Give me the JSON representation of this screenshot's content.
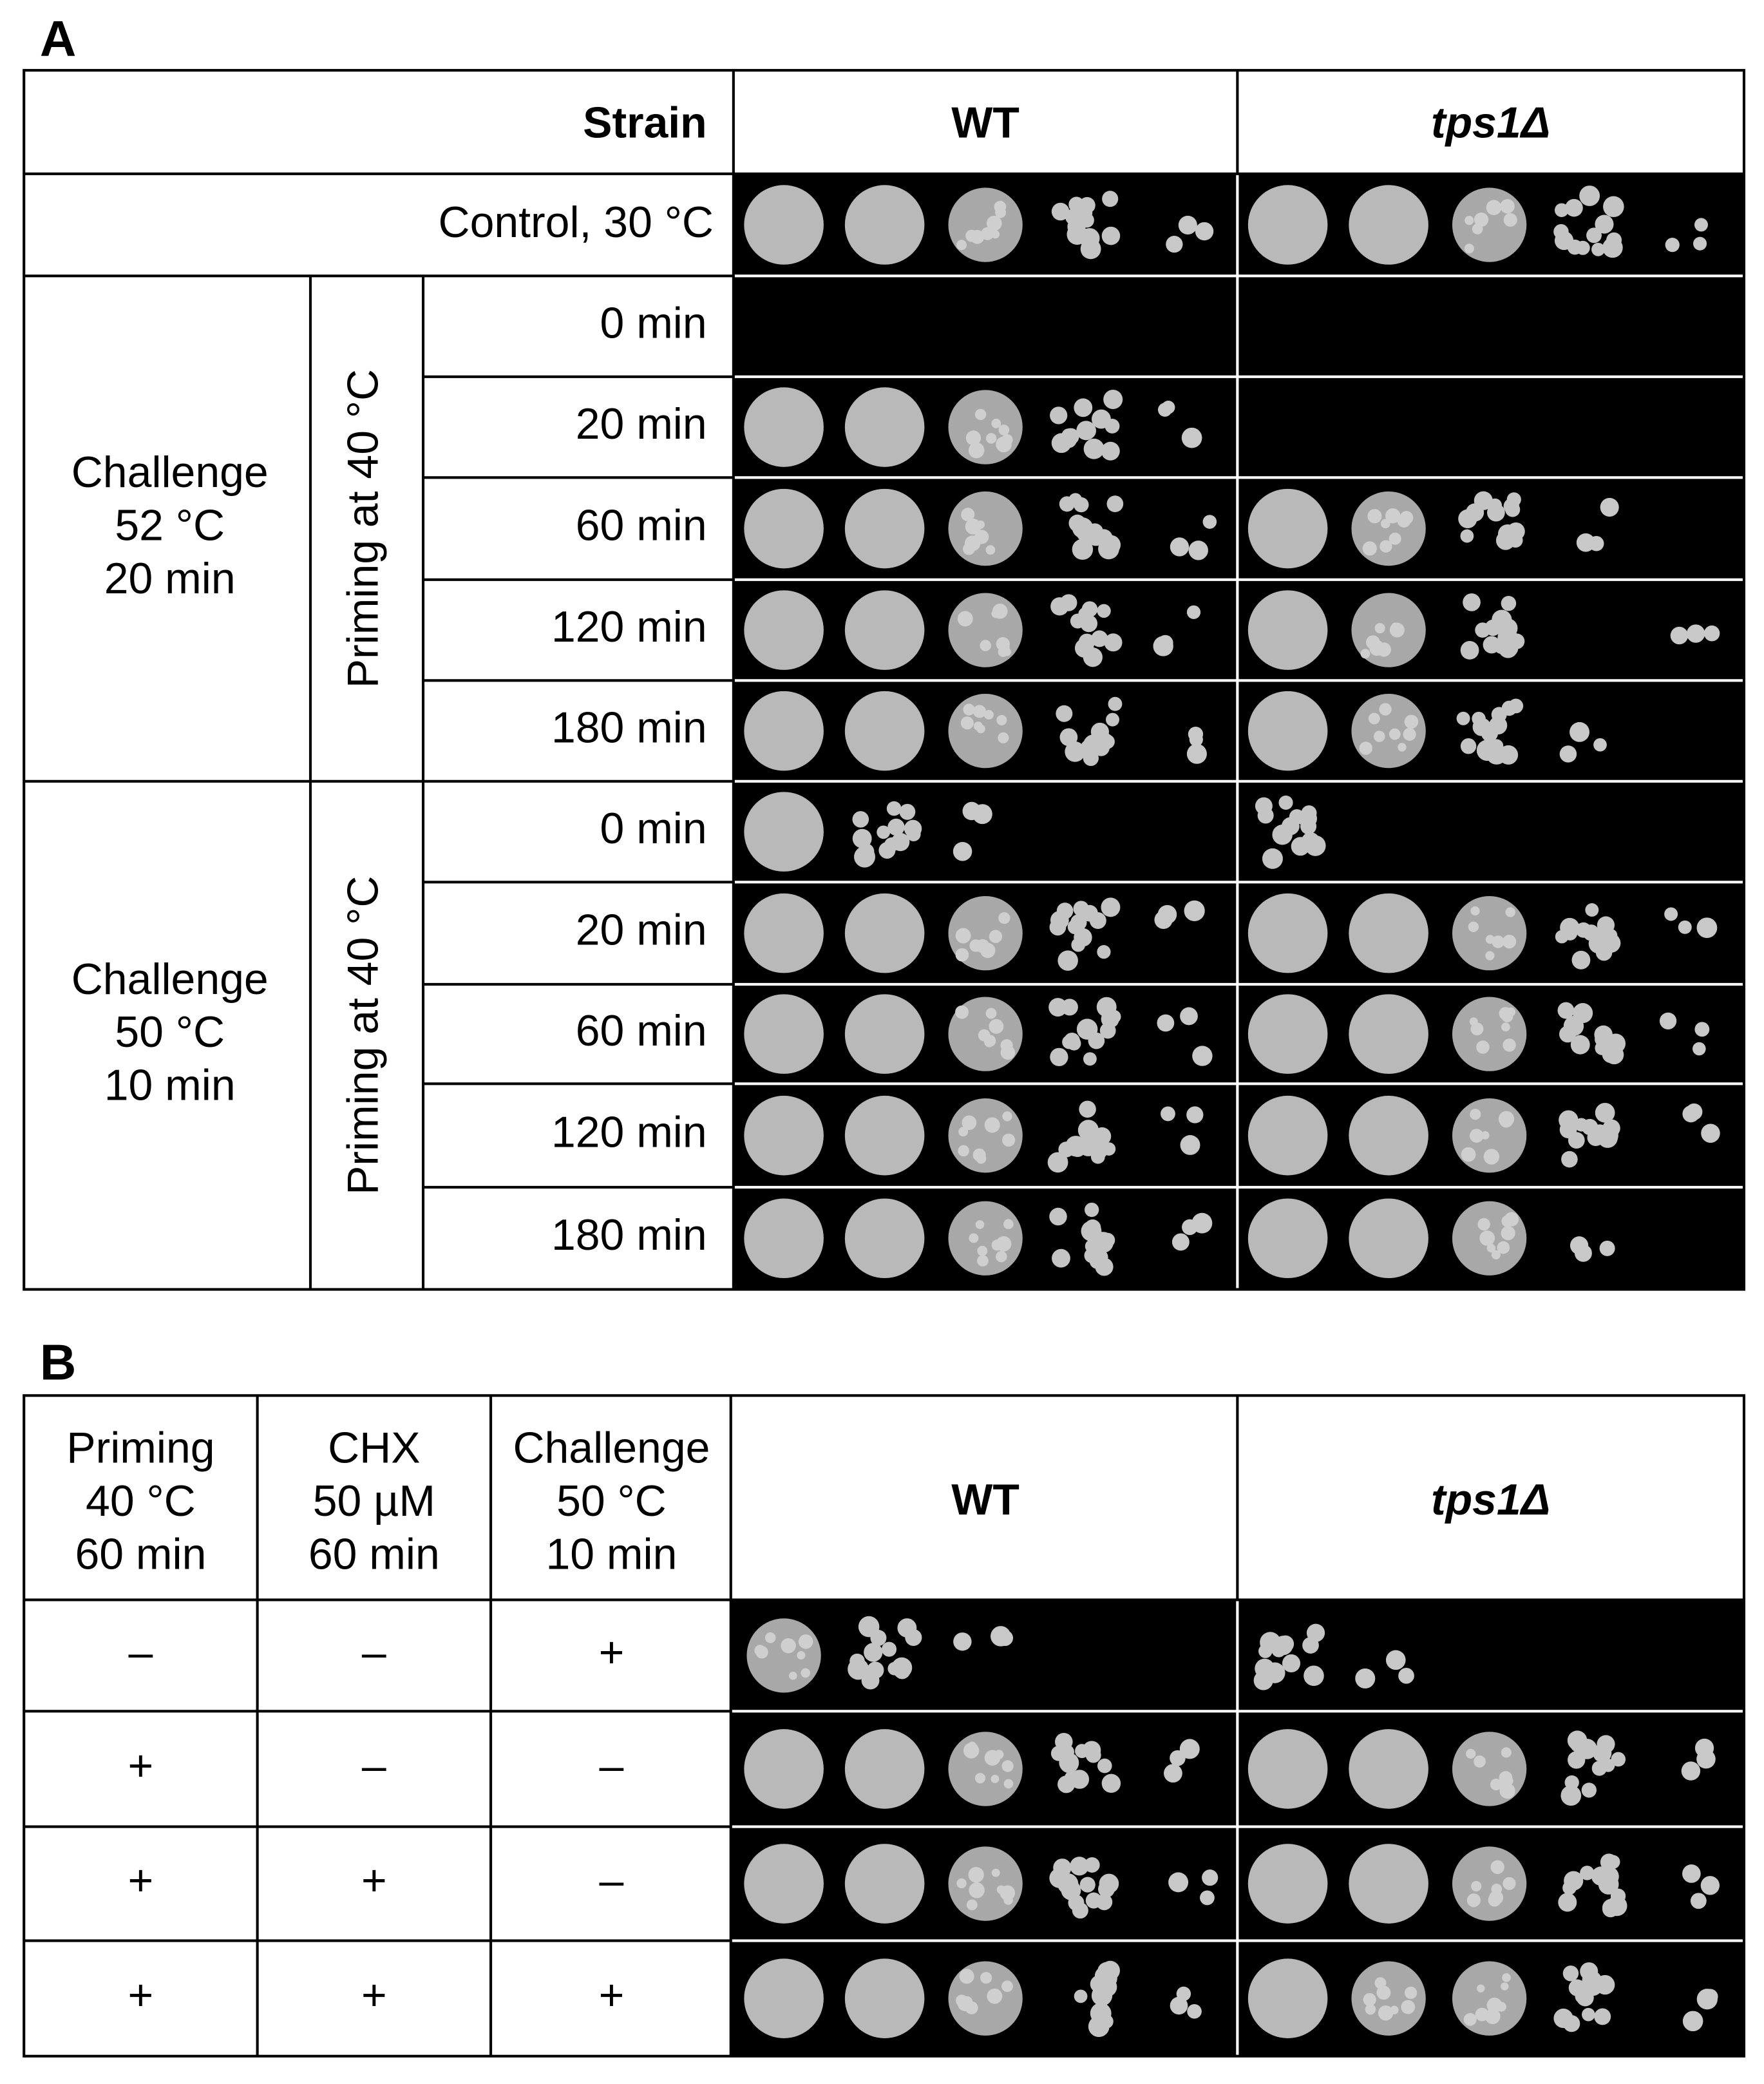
{
  "panel_a": {
    "label": "A",
    "header": {
      "strain": "Strain",
      "wt": "WT",
      "mutant": "tps1Δ"
    },
    "control": "Control, 30 °C",
    "groups": [
      {
        "challenge": [
          "Challenge",
          "52 °C",
          "20 min"
        ],
        "priming": "Priming at 40 °C",
        "times": [
          "0 min",
          "20 min",
          "60 min",
          "120 min",
          "180 min"
        ]
      },
      {
        "challenge": [
          "Challenge",
          "50 °C",
          "10 min"
        ],
        "priming": "Priming at 40 °C",
        "times": [
          "0 min",
          "20 min",
          "60 min",
          "120 min",
          "180 min"
        ]
      }
    ]
  },
  "panel_b": {
    "label": "B",
    "headers": [
      [
        "Priming",
        "40 °C",
        "60 min"
      ],
      [
        "CHX",
        "50 µM",
        "60 min"
      ],
      [
        "Challenge",
        "50 °C",
        "10 min"
      ]
    ],
    "wt": "WT",
    "mutant": "tps1Δ",
    "rows": [
      [
        "–",
        "–",
        "+"
      ],
      [
        "+",
        "–",
        "–"
      ],
      [
        "+",
        "+",
        "–"
      ],
      [
        "+",
        "+",
        "+"
      ]
    ]
  }
}
